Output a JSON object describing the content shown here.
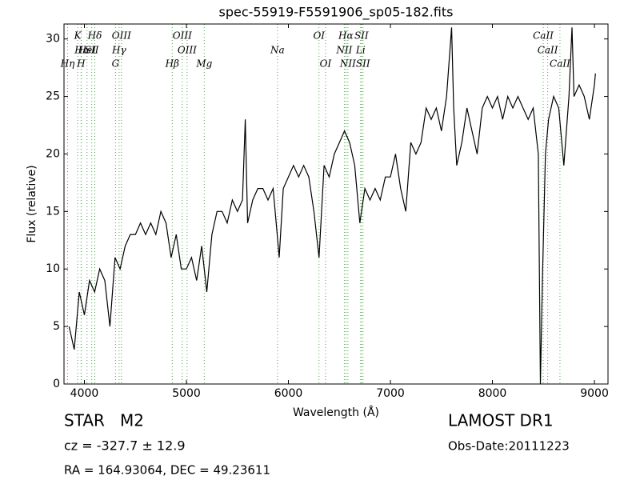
{
  "chart_data": {
    "type": "line",
    "title": "spec-55919-F5591906_sp05-182.fits",
    "xlabel": "Wavelength (Å)",
    "ylabel": "Flux (relative)",
    "xlim": [
      3800,
      9133
    ],
    "ylim": [
      0,
      31.3
    ],
    "xticks": [
      4000,
      5000,
      6000,
      7000,
      8000,
      9000
    ],
    "yticks": [
      0,
      5,
      10,
      15,
      20,
      25,
      30
    ],
    "line_color": "#000000",
    "marker_color": "#44aa44",
    "x": [
      3850,
      3900,
      3950,
      4000,
      4050,
      4100,
      4150,
      4200,
      4250,
      4300,
      4350,
      4400,
      4450,
      4500,
      4550,
      4600,
      4650,
      4700,
      4750,
      4800,
      4850,
      4900,
      4950,
      5000,
      5050,
      5100,
      5150,
      5200,
      5250,
      5300,
      5350,
      5400,
      5450,
      5500,
      5550,
      5577,
      5600,
      5650,
      5700,
      5750,
      5800,
      5850,
      5890,
      5910,
      5950,
      6000,
      6050,
      6100,
      6150,
      6200,
      6250,
      6300,
      6350,
      6400,
      6450,
      6500,
      6550,
      6600,
      6650,
      6700,
      6750,
      6800,
      6850,
      6900,
      6950,
      7000,
      7050,
      7100,
      7150,
      7200,
      7250,
      7300,
      7350,
      7400,
      7450,
      7500,
      7550,
      7600,
      7620,
      7650,
      7700,
      7750,
      7800,
      7850,
      7900,
      7950,
      8000,
      8050,
      8100,
      8150,
      8200,
      8250,
      8300,
      8350,
      8400,
      8450,
      8470,
      8490,
      8520,
      8550,
      8600,
      8650,
      8700,
      8750,
      8780,
      8800,
      8850,
      8900,
      8950,
      9000,
      9010
    ],
    "series": [
      {
        "values": [
          5,
          3,
          8,
          6,
          9,
          8,
          10,
          9,
          5,
          11,
          10,
          12,
          13,
          13,
          14,
          13,
          14,
          13,
          15,
          14,
          11,
          13,
          10,
          10,
          11,
          9,
          12,
          8,
          13,
          15,
          15,
          14,
          16,
          15,
          16,
          23,
          14,
          16,
          17,
          17,
          16,
          17,
          13,
          11,
          17,
          18,
          19,
          18,
          19,
          18,
          15,
          11,
          19,
          18,
          20,
          21,
          22,
          21,
          19,
          14,
          17,
          16,
          17,
          16,
          18,
          18,
          20,
          17,
          15,
          21,
          20,
          21,
          24,
          23,
          24,
          22,
          25,
          31,
          24,
          19,
          21,
          24,
          22,
          20,
          24,
          25,
          24,
          25,
          23,
          25,
          24,
          25,
          24,
          23,
          24,
          20,
          0,
          9,
          20,
          23,
          25,
          24,
          19,
          25,
          31,
          25,
          26,
          25,
          23,
          26,
          27
        ]
      }
    ],
    "lines": [
      {
        "label": "K",
        "wavelength": 3934,
        "row": 1
      },
      {
        "label": "Hδ",
        "wavelength": 4102,
        "row": 1
      },
      {
        "label": "OIII",
        "wavelength": 4363,
        "row": 1
      },
      {
        "label": "OIII",
        "wavelength": 4959,
        "row": 1
      },
      {
        "label": "OI",
        "wavelength": 6300,
        "row": 1
      },
      {
        "label": "Hα",
        "wavelength": 6563,
        "row": 1
      },
      {
        "label": "SII",
        "wavelength": 6716,
        "row": 1
      },
      {
        "label": "CaII",
        "wavelength": 8498,
        "row": 1
      },
      {
        "label": "Hε",
        "wavelength": 3970,
        "row": 2
      },
      {
        "label": "HeI",
        "wavelength": 4026,
        "row": 2
      },
      {
        "label": "SII",
        "wavelength": 4072,
        "row": 2
      },
      {
        "label": "Hγ",
        "wavelength": 4340,
        "row": 2
      },
      {
        "label": "OIII",
        "wavelength": 5007,
        "row": 2
      },
      {
        "label": "Na",
        "wavelength": 5893,
        "row": 2
      },
      {
        "label": "NII",
        "wavelength": 6548,
        "row": 2
      },
      {
        "label": "Li",
        "wavelength": 6708,
        "row": 2
      },
      {
        "label": "CaII",
        "wavelength": 8542,
        "row": 2
      },
      {
        "label": "Hη",
        "wavelength": 3835,
        "row": 3
      },
      {
        "label": "H",
        "wavelength": 3968,
        "row": 3
      },
      {
        "label": "G",
        "wavelength": 4305,
        "row": 3
      },
      {
        "label": "Hβ",
        "wavelength": 4861,
        "row": 3
      },
      {
        "label": "Mg",
        "wavelength": 5175,
        "row": 3
      },
      {
        "label": "OI",
        "wavelength": 6364,
        "row": 3
      },
      {
        "label": "NII",
        "wavelength": 6583,
        "row": 3
      },
      {
        "label": "SII",
        "wavelength": 6731,
        "row": 3
      },
      {
        "label": "CaII",
        "wavelength": 8662,
        "row": 3
      }
    ]
  },
  "info": {
    "class": "STAR   M2",
    "cz": "cz = -327.7 ± 12.9",
    "coords": "RA = 164.93064, DEC = 49.23611",
    "survey": "LAMOST DR1",
    "date": "Obs-Date:20111223"
  }
}
